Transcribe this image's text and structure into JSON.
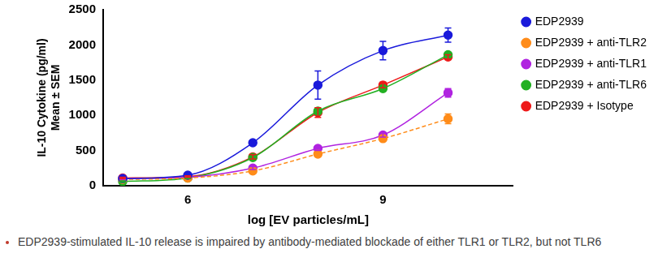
{
  "chart_data": {
    "type": "scatter",
    "x_label": "log [EV particles/mL]",
    "y_label": [
      "IL-10 Cytokine (pg/ml)",
      "Mean ± SEM"
    ],
    "annotations": [
      "EDP2939-stimulated IL-10 release is impaired by antibody-mediated blockade of either TLR1 or TLR2, but not TLR6"
    ],
    "xlim": [
      4.7,
      11
    ],
    "xticks": [
      6,
      9
    ],
    "ylim": [
      0,
      2500
    ],
    "yticks": [
      0,
      500,
      1000,
      1500,
      2000,
      2500
    ],
    "grid": false,
    "legend": "right",
    "x": [
      5,
      6,
      7,
      8,
      9,
      10
    ],
    "series": [
      {
        "name": "EDP2939",
        "color": "#1a1adb",
        "marker": "circle",
        "line_style": "solid",
        "values": [
          100,
          150,
          610,
          1430,
          1920,
          2140
        ],
        "errors": [
          20,
          20,
          30,
          200,
          130,
          100
        ]
      },
      {
        "name": "EDP2939 + anti-TLR2",
        "color": "#ff8c1a",
        "marker": "circle",
        "line_style": "dashed",
        "values": [
          90,
          110,
          210,
          450,
          670,
          950
        ],
        "errors": [
          10,
          10,
          20,
          20,
          30,
          70
        ]
      },
      {
        "name": "EDP2939 + anti-TLR1",
        "color": "#b023e0",
        "marker": "circle",
        "line_style": "solid",
        "values": [
          100,
          120,
          250,
          530,
          720,
          1320
        ],
        "errors": [
          10,
          10,
          20,
          30,
          30,
          60
        ]
      },
      {
        "name": "EDP2939 + anti-TLR6",
        "color": "#22b022",
        "marker": "circle",
        "line_style": "solid",
        "values": [
          60,
          110,
          400,
          1060,
          1380,
          1860
        ],
        "errors": [
          10,
          10,
          20,
          40,
          30,
          30
        ]
      },
      {
        "name": "EDP2939 + Isotype",
        "color": "#ee1a1a",
        "marker": "circle",
        "line_style": "solid",
        "values": [
          110,
          130,
          410,
          1040,
          1430,
          1830
        ],
        "errors": [
          10,
          10,
          30,
          70,
          40,
          30
        ]
      }
    ]
  }
}
